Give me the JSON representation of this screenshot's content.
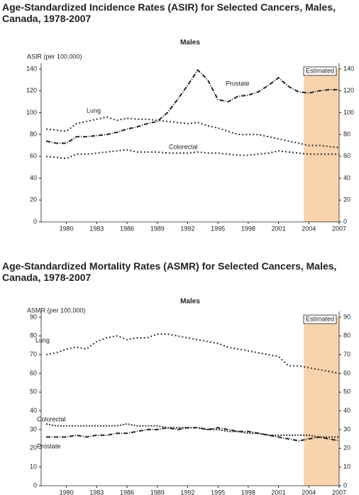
{
  "chart_data": [
    {
      "type": "line",
      "title": "Age-Standardized Incidence Rates (ASIR) for Selected Cancers, Males, Canada, 1978-2007",
      "subtitle": "Males",
      "y_label": "ASIR (per 100,000)",
      "estimated_label": "Estimated",
      "estimated_from": 2003.5,
      "x": [
        1978,
        1979,
        1980,
        1981,
        1982,
        1983,
        1984,
        1985,
        1986,
        1987,
        1988,
        1989,
        1990,
        1991,
        1992,
        1993,
        1994,
        1995,
        1996,
        1997,
        1998,
        1999,
        2000,
        2001,
        2002,
        2003,
        2004,
        2005,
        2006,
        2007
      ],
      "xlim": [
        1977.5,
        2007
      ],
      "xticks": [
        1980,
        1983,
        1986,
        1989,
        1992,
        1995,
        1998,
        2001,
        2004,
        2007
      ],
      "ylim": [
        0,
        140
      ],
      "yticks": [
        0,
        20,
        40,
        60,
        80,
        100,
        120,
        140
      ],
      "series": [
        {
          "name": "Prostate",
          "color": "#222222",
          "dash": "6 2 1 2",
          "values": [
            74,
            72,
            72,
            78,
            78,
            79,
            80,
            82,
            85,
            87,
            90,
            92,
            100,
            112,
            125,
            139,
            130,
            112,
            110,
            115,
            116,
            119,
            125,
            132,
            124,
            119,
            118,
            120,
            121,
            121
          ]
        },
        {
          "name": "Lung",
          "color": "#333333",
          "dash": "2 3",
          "values": [
            85,
            84,
            83,
            90,
            92,
            94,
            96,
            93,
            95,
            94,
            94,
            93,
            92,
            91,
            90,
            91,
            88,
            86,
            83,
            80,
            80,
            80,
            78,
            76,
            74,
            72,
            70,
            70,
            69,
            68
          ]
        },
        {
          "name": "Colorectal",
          "color": "#333333",
          "dash": "2 3",
          "values": [
            60,
            59,
            58,
            62,
            62,
            63,
            64,
            65,
            66,
            64,
            64,
            64,
            63,
            63,
            63,
            64,
            63,
            63,
            62,
            61,
            61,
            62,
            63,
            65,
            64,
            63,
            62,
            62,
            62,
            62
          ]
        }
      ]
    },
    {
      "type": "line",
      "title": "Age-Standardized Mortality Rates (ASMR) for Selected Cancers, Males, Canada, 1978-2007",
      "subtitle": "Males",
      "y_label": "ASMR (per 100,000)",
      "estimated_label": "Estimated",
      "estimated_from": 2003.5,
      "x": [
        1978,
        1979,
        1980,
        1981,
        1982,
        1983,
        1984,
        1985,
        1986,
        1987,
        1988,
        1989,
        1990,
        1991,
        1992,
        1993,
        1994,
        1995,
        1996,
        1997,
        1998,
        1999,
        2000,
        2001,
        2002,
        2003,
        2004,
        2005,
        2006,
        2007
      ],
      "xlim": [
        1977.5,
        2007
      ],
      "xticks": [
        1980,
        1983,
        1986,
        1989,
        1992,
        1995,
        1998,
        2001,
        2004,
        2007
      ],
      "ylim": [
        0,
        90
      ],
      "yticks": [
        0,
        10,
        20,
        30,
        40,
        50,
        60,
        70,
        80,
        90
      ],
      "series": [
        {
          "name": "Lung",
          "color": "#333333",
          "dash": "2 3",
          "values": [
            70,
            71,
            73,
            74,
            73,
            77,
            79,
            80,
            78,
            79,
            79,
            81,
            81,
            80,
            79,
            78,
            77,
            76,
            74,
            73,
            72,
            71,
            70,
            69,
            64,
            64,
            63,
            62,
            61,
            60
          ]
        },
        {
          "name": "Colorectal",
          "color": "#333333",
          "dash": "2 2",
          "values": [
            33,
            32,
            32,
            32,
            32,
            32,
            32,
            32,
            33,
            32,
            32,
            32,
            31,
            31,
            31,
            31,
            30,
            30,
            29,
            29,
            28,
            28,
            27,
            27,
            27,
            27,
            27,
            26,
            26,
            26
          ]
        },
        {
          "name": "Prostate",
          "color": "#222222",
          "dash": "6 2 1 2",
          "values": [
            26,
            26,
            26,
            27,
            26,
            27,
            27,
            28,
            28,
            29,
            30,
            30,
            31,
            30,
            31,
            31,
            30,
            31,
            30,
            29,
            29,
            28,
            27,
            26,
            25,
            24,
            25,
            26,
            25,
            24
          ]
        }
      ]
    }
  ]
}
